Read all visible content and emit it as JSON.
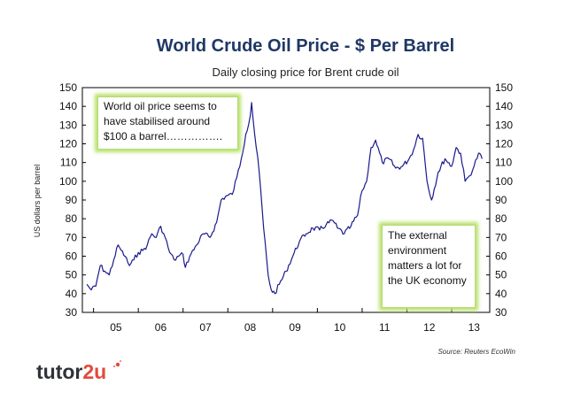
{
  "chart_data": {
    "type": "line",
    "title": "World Crude Oil Price - $ Per Barrel",
    "subtitle": "Daily closing price for Brent crude oil",
    "ylabel": "US dollars per barrel",
    "xlabel": "",
    "ylim": [
      30,
      150
    ],
    "y_ticks": [
      30,
      40,
      50,
      60,
      70,
      80,
      90,
      100,
      110,
      120,
      130,
      140,
      150
    ],
    "x_tick_labels": [
      "05",
      "06",
      "07",
      "08",
      "09",
      "10",
      "11",
      "12",
      "13"
    ],
    "grid": false,
    "legend": "none",
    "line_color": "#1a1a8c",
    "series": [
      {
        "x": [
          2004.85,
          2004.95,
          2005.05,
          2005.15,
          2005.25,
          2005.35,
          2005.45,
          2005.55,
          2005.62,
          2005.7,
          2005.8,
          2005.9,
          2006.0,
          2006.1,
          2006.2,
          2006.3,
          2006.4,
          2006.5,
          2006.6,
          2006.7,
          2006.8,
          2006.9,
          2007.0,
          2007.05,
          2007.15,
          2007.3,
          2007.45,
          2007.6,
          2007.75,
          2007.85,
          2007.95,
          2008.1,
          2008.2,
          2008.3,
          2008.4,
          2008.5,
          2008.53,
          2008.6,
          2008.7,
          2008.8,
          2008.9,
          2008.97,
          2009.05,
          2009.15,
          2009.3,
          2009.45,
          2009.6,
          2009.75,
          2009.9,
          2010.05,
          2010.2,
          2010.35,
          2010.45,
          2010.6,
          2010.75,
          2010.9,
          2011.0,
          2011.1,
          2011.2,
          2011.3,
          2011.45,
          2011.6,
          2011.75,
          2011.9,
          2012.05,
          2012.15,
          2012.25,
          2012.35,
          2012.45,
          2012.55,
          2012.7,
          2012.85,
          2013.0,
          2013.1,
          2013.2,
          2013.3,
          2013.4,
          2013.5,
          2013.6,
          2013.68
        ],
        "y": [
          45,
          42,
          44,
          55,
          52,
          50,
          58,
          66,
          63,
          60,
          55,
          58,
          62,
          63,
          66,
          72,
          70,
          76,
          70,
          62,
          58,
          60,
          61,
          54,
          60,
          66,
          72,
          70,
          78,
          90,
          92,
          93,
          102,
          112,
          125,
          135,
          142,
          125,
          105,
          75,
          50,
          42,
          40,
          45,
          52,
          60,
          68,
          72,
          75,
          74,
          77,
          79,
          75,
          72,
          76,
          82,
          95,
          100,
          118,
          122,
          110,
          112,
          107,
          108,
          112,
          117,
          125,
          123,
          100,
          90,
          105,
          112,
          108,
          118,
          115,
          100,
          103,
          108,
          115,
          112
        ]
      }
    ]
  },
  "callouts": {
    "top_left": "World oil price seems to have stabilised around $100 a barrel…………….",
    "bottom_right": "The external environment matters a lot for the UK economy"
  },
  "source_note": "Source: Reuters EcoWin",
  "logo": {
    "text_main": "tutor",
    "text_accent": "2u",
    "text_color": "#2f3237",
    "accent_color": "#e24a3b"
  },
  "colors": {
    "title": "#1f3864",
    "callout_glow": "#b9e26b"
  }
}
